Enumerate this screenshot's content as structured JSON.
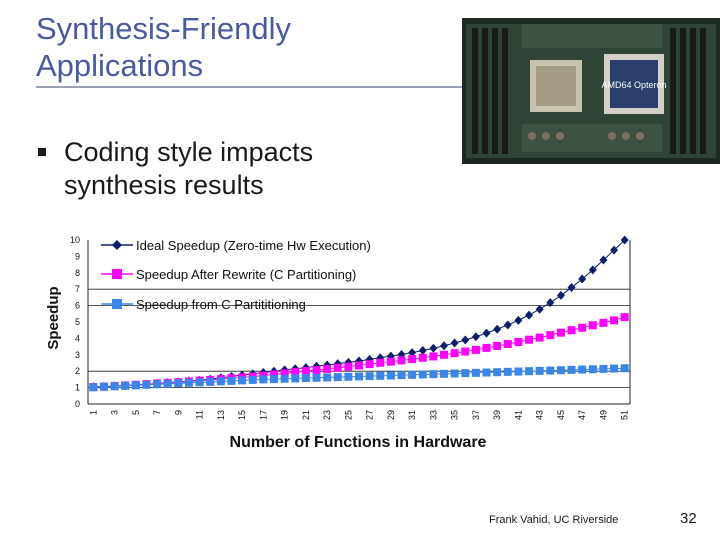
{
  "slide": {
    "title_line1": "Synthesis-Friendly",
    "title_line2": "Applications",
    "bullet_marker": "n",
    "bullet_text": "Coding style impacts synthesis results",
    "footer_text": "Frank Vahid, UC Riverside",
    "slide_number": "32",
    "photo_chip_label": "AMD64 Opteron"
  },
  "colors": {
    "title": "#4a5a9e",
    "ideal": "#0d1f6b",
    "rewrite": "#ff00ff",
    "partition": "#3a86e8"
  },
  "chart_data": {
    "type": "line",
    "title": "",
    "xlabel": "Number of Functions in Hardware",
    "ylabel": "Speedup",
    "ylim": [
      0,
      10
    ],
    "y_ticks": [
      "0",
      "1",
      "2",
      "3",
      "4",
      "5",
      "6",
      "7",
      "8",
      "9",
      "10"
    ],
    "x_ticks": [
      "1",
      "3",
      "5",
      "7",
      "9",
      "11",
      "13",
      "15",
      "17",
      "19",
      "21",
      "23",
      "25",
      "27",
      "29",
      "31",
      "33",
      "35",
      "37",
      "39",
      "41",
      "43",
      "45",
      "47",
      "49",
      "51"
    ],
    "x_count": 51,
    "legend_position": "top-left",
    "series": [
      {
        "name": "Ideal Speedup (Zero-time Hw Execution)",
        "marker": "diamond",
        "values": [
          1.05,
          1.07,
          1.1,
          1.13,
          1.16,
          1.2,
          1.25,
          1.3,
          1.35,
          1.4,
          1.45,
          1.52,
          1.6,
          1.68,
          1.76,
          1.84,
          1.92,
          2.0,
          2.08,
          2.15,
          2.22,
          2.3,
          2.38,
          2.46,
          2.54,
          2.62,
          2.72,
          2.82,
          2.92,
          3.02,
          3.13,
          3.26,
          3.4,
          3.55,
          3.72,
          3.9,
          4.1,
          4.32,
          4.56,
          4.82,
          5.1,
          5.42,
          5.78,
          6.18,
          6.62,
          7.1,
          7.62,
          8.18,
          8.78,
          9.38,
          10.0
        ]
      },
      {
        "name": "Speedup After Rewrite (C Partitioning)",
        "marker": "square",
        "values": [
          1.03,
          1.06,
          1.1,
          1.13,
          1.17,
          1.21,
          1.25,
          1.29,
          1.33,
          1.37,
          1.42,
          1.47,
          1.52,
          1.57,
          1.62,
          1.67,
          1.73,
          1.8,
          1.87,
          1.94,
          2.01,
          2.07,
          2.14,
          2.21,
          2.28,
          2.35,
          2.43,
          2.51,
          2.58,
          2.66,
          2.74,
          2.82,
          2.9,
          3.0,
          3.1,
          3.2,
          3.3,
          3.42,
          3.54,
          3.66,
          3.78,
          3.92,
          4.05,
          4.2,
          4.35,
          4.5,
          4.65,
          4.8,
          4.95,
          5.1,
          5.3
        ]
      },
      {
        "name": "Speedup from C Partititioning",
        "marker": "square",
        "values": [
          1.02,
          1.05,
          1.08,
          1.11,
          1.14,
          1.17,
          1.2,
          1.23,
          1.26,
          1.29,
          1.32,
          1.35,
          1.38,
          1.41,
          1.44,
          1.47,
          1.5,
          1.52,
          1.54,
          1.56,
          1.58,
          1.6,
          1.62,
          1.64,
          1.66,
          1.68,
          1.7,
          1.72,
          1.74,
          1.76,
          1.78,
          1.8,
          1.82,
          1.84,
          1.86,
          1.88,
          1.9,
          1.92,
          1.94,
          1.96,
          1.98,
          2.0,
          2.02,
          2.04,
          2.06,
          2.08,
          2.1,
          2.12,
          2.14,
          2.16,
          2.18
        ]
      }
    ]
  }
}
